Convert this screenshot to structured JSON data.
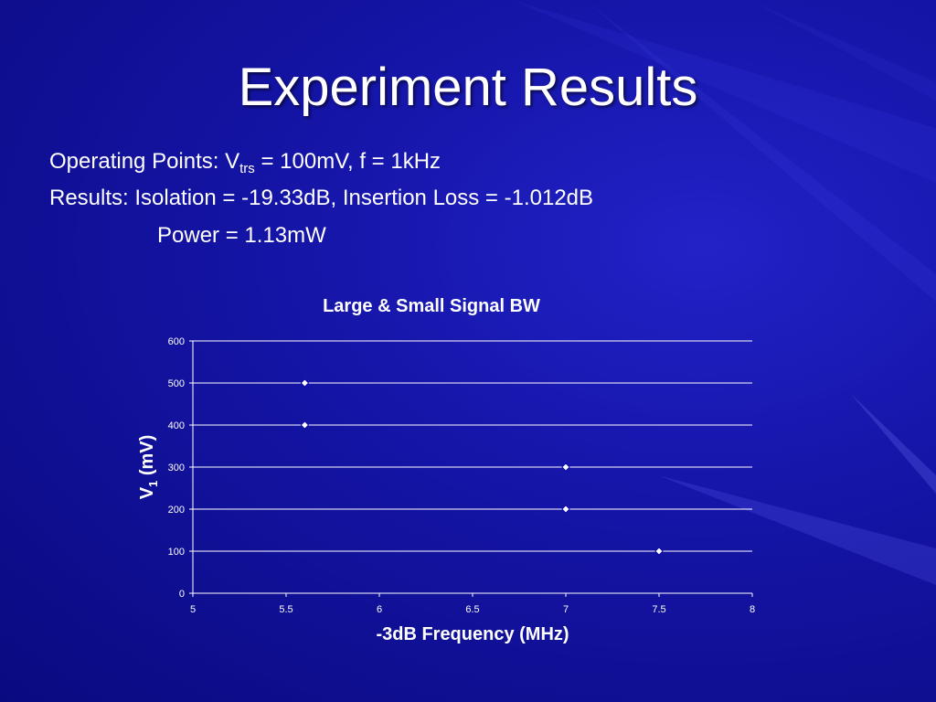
{
  "slide": {
    "title": "Experiment Results",
    "line1_prefix": "Operating Points: V",
    "line1_sub": "trs",
    "line1_suffix": " = 100mV, f = 1kHz",
    "line2": "Results:  Isolation = -19.33dB,  Insertion Loss = -1.012dB",
    "line3": "Power = 1.13mW"
  },
  "colors": {
    "background": "#1515a8",
    "text": "#ffffff",
    "marker_fill": "#ffffff",
    "marker_stroke": "#0000aa"
  },
  "chart_data": {
    "type": "scatter",
    "title": "Large & Small Signal BW",
    "xlabel": "-3dB Frequency (MHz)",
    "ylabel_main": "V",
    "ylabel_sub": "1",
    "ylabel_unit": " (mV)",
    "xlim": [
      5,
      8
    ],
    "ylim": [
      0,
      600
    ],
    "xticks": [
      5,
      5.5,
      6,
      6.5,
      7,
      7.5,
      8
    ],
    "yticks": [
      0,
      100,
      200,
      300,
      400,
      500,
      600
    ],
    "grid": "horizontal",
    "legend": "none",
    "points": [
      {
        "x": 5.6,
        "y": 500
      },
      {
        "x": 5.6,
        "y": 400
      },
      {
        "x": 7.0,
        "y": 300
      },
      {
        "x": 7.0,
        "y": 200
      },
      {
        "x": 7.5,
        "y": 100
      }
    ]
  }
}
